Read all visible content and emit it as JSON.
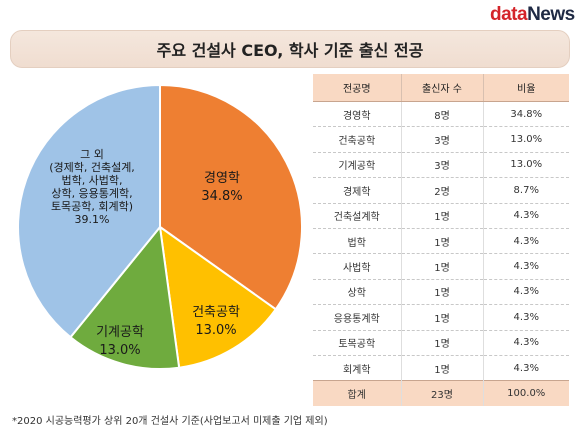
{
  "logo": {
    "part1": "data",
    "part2": "News"
  },
  "title": "주요 건설사 CEO, 학사 기준 출신 전공",
  "chart_data": {
    "type": "pie",
    "slices": [
      {
        "label_lines": [
          "경영학",
          "34.8%"
        ],
        "value": 34.8,
        "color": "#ee7f32",
        "name": "경영학"
      },
      {
        "label_lines": [
          "건축공학",
          "13.0%"
        ],
        "value": 13.0,
        "color": "#ffc000",
        "name": "건축공학"
      },
      {
        "label_lines": [
          "기계공학",
          "13.0%"
        ],
        "value": 13.0,
        "color": "#6fab3e",
        "name": "기계공학"
      },
      {
        "label_lines": [
          "그 외",
          "(경제학, 건축설계,",
          "법학, 사법학,",
          "상학, 응용통계학,",
          "토목공학, 회계학)",
          "39.1%"
        ],
        "value": 39.1,
        "color": "#9fc3e7",
        "name": "그 외"
      }
    ],
    "table": {
      "headers": [
        "전공명",
        "출신자 수",
        "비율"
      ],
      "rows": [
        [
          "경영학",
          "8명",
          "34.8%"
        ],
        [
          "건축공학",
          "3명",
          "13.0%"
        ],
        [
          "기계공학",
          "3명",
          "13.0%"
        ],
        [
          "경제학",
          "2명",
          "8.7%"
        ],
        [
          "건축설계학",
          "1명",
          "4.3%"
        ],
        [
          "법학",
          "1명",
          "4.3%"
        ],
        [
          "사법학",
          "1명",
          "4.3%"
        ],
        [
          "상학",
          "1명",
          "4.3%"
        ],
        [
          "응용통계학",
          "1명",
          "4.3%"
        ],
        [
          "토목공학",
          "1명",
          "4.3%"
        ],
        [
          "회계학",
          "1명",
          "4.3%"
        ]
      ],
      "total": [
        "합계",
        "23명",
        "100.0%"
      ]
    }
  },
  "footnote": "*2020 시공능력평가 상위 20개 건설사 기준(사업보고서 미제출 기업 제외)"
}
